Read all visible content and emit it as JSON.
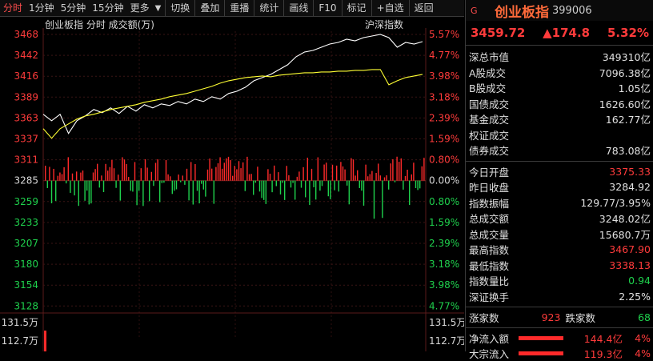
{
  "toolbar": {
    "items": [
      "分时",
      "1分钟",
      "5分钟",
      "15分钟",
      "更多"
    ],
    "actions": [
      "切换",
      "叠加",
      "重播",
      "统计",
      "画线",
      "F10",
      "标记",
      "+自选",
      "返回"
    ]
  },
  "chart": {
    "legend_left": "创业板指  分时 成交额(万)",
    "legend_right": "沪深指数",
    "price_ticks": [
      "3468",
      "3442",
      "3416",
      "3389",
      "3363",
      "3337",
      "3311",
      "3285",
      "3259",
      "3233",
      "3207",
      "3180",
      "3154",
      "3128"
    ],
    "pct_ticks": [
      "5.57%",
      "4.77%",
      "3.98%",
      "3.18%",
      "2.39%",
      "1.59%",
      "0.80%",
      "0.00%",
      "0.80%",
      "1.59%",
      "2.39%",
      "3.18%",
      "3.98%",
      "4.77%"
    ],
    "volume_ticks": [
      "131.5万",
      "112.7万"
    ]
  },
  "chart_data": {
    "type": "line",
    "title": "",
    "y_range": [
      3128,
      3468
    ],
    "baseline": 3285,
    "series": [
      {
        "name": "创业板指",
        "color": "#ffffff",
        "values": [
          3368,
          3360,
          3368,
          3344,
          3360,
          3366,
          3374,
          3370,
          3376,
          3369,
          3378,
          3372,
          3380,
          3376,
          3381,
          3379,
          3384,
          3381,
          3387,
          3384,
          3390,
          3387,
          3394,
          3397,
          3402,
          3410,
          3414,
          3418,
          3424,
          3430,
          3440,
          3446,
          3448,
          3452,
          3456,
          3458,
          3462,
          3460,
          3464,
          3466,
          3468,
          3464,
          3452,
          3458,
          3456,
          3459
        ]
      },
      {
        "name": "沪深指数",
        "color": "#ffff33",
        "values": [
          3350,
          3338,
          3350,
          3356,
          3362,
          3366,
          3368,
          3371,
          3374,
          3376,
          3378,
          3380,
          3383,
          3385,
          3387,
          3390,
          3392,
          3394,
          3397,
          3400,
          3403,
          3407,
          3410,
          3412,
          3414,
          3415,
          3416,
          3415,
          3417,
          3418,
          3419,
          3420,
          3420,
          3421,
          3421,
          3422,
          3422,
          3423,
          3423,
          3424,
          3424,
          3405,
          3410,
          3414,
          3416,
          3418
        ]
      }
    ]
  },
  "panel": {
    "mark": "G",
    "name": "创业板指",
    "code": "399006",
    "price": "3459.72",
    "change": "▲174.8",
    "pct": "5.32%",
    "rows1": [
      {
        "label": "深总市值",
        "value": "349310亿",
        "color": "white"
      },
      {
        "label": "A股成交",
        "value": "7096.38亿",
        "color": "white"
      },
      {
        "label": "B股成交",
        "value": "1.05亿",
        "color": "white"
      },
      {
        "label": "国债成交",
        "value": "1626.60亿",
        "color": "white"
      },
      {
        "label": "基金成交",
        "value": "162.77亿",
        "color": "white"
      },
      {
        "label": "权证成交",
        "value": "",
        "color": "white"
      },
      {
        "label": "债券成交",
        "value": "783.08亿",
        "color": "white"
      }
    ],
    "rows2": [
      {
        "label": "今日开盘",
        "value": "3375.33",
        "color": "red"
      },
      {
        "label": "昨日收盘",
        "value": "3284.92",
        "color": "white"
      },
      {
        "label": "指数振幅",
        "value": "129.77/3.95%",
        "color": "white"
      },
      {
        "label": "总成交额",
        "value": "3248.02亿",
        "color": "white"
      },
      {
        "label": "总成交量",
        "value": "15680.7万",
        "color": "white"
      },
      {
        "label": "最高指数",
        "value": "3467.90",
        "color": "red"
      },
      {
        "label": "最低指数",
        "value": "3338.13",
        "color": "red"
      },
      {
        "label": "指数量比",
        "value": "0.94",
        "color": "green"
      },
      {
        "label": "深证换手",
        "value": "2.25%",
        "color": "white"
      }
    ],
    "up_label": "涨家数",
    "up_value": "923",
    "down_label": "跌家数",
    "down_value": "68",
    "net_label": "净流入额",
    "net_value": "144.4亿",
    "net_pct": "4%",
    "net_level": 0.8,
    "block_label": "大宗流入",
    "block_value": "119.3亿",
    "block_pct": "4%",
    "block_level": 0.8
  }
}
